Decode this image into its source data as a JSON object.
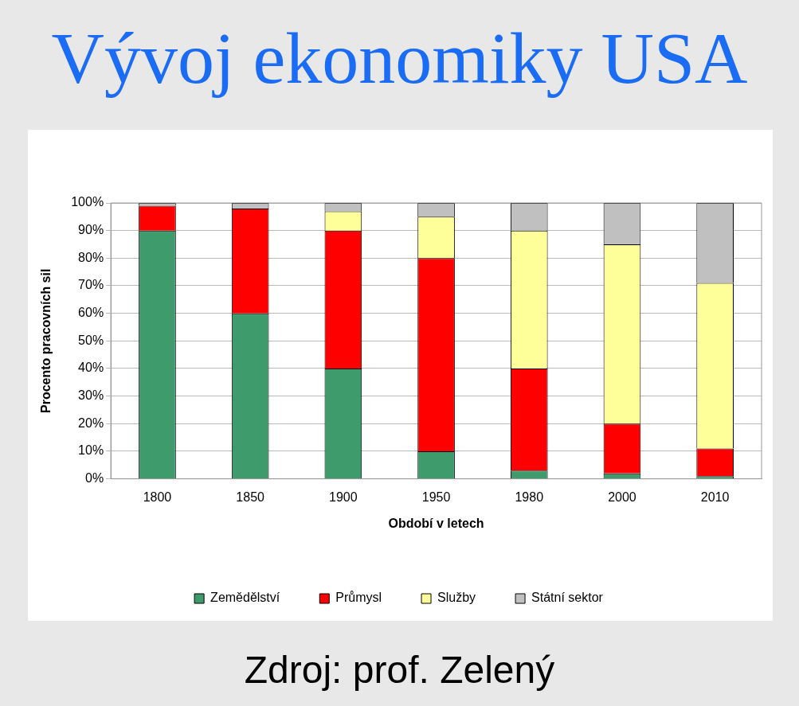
{
  "chart_data": {
    "type": "bar",
    "title": "Vývoj ekonomiky USA",
    "xlabel": "Období v letech",
    "ylabel": "Procento pracovních sil",
    "categories": [
      "1800",
      "1850",
      "1900",
      "1950",
      "1980",
      "2000",
      "2010"
    ],
    "stacked": true,
    "series": [
      {
        "name": "Zemědělství",
        "color": "#3d9b6c",
        "values": [
          90,
          60,
          40,
          10,
          3,
          2,
          1
        ]
      },
      {
        "name": "Průmysl",
        "color": "#ff0000",
        "values": [
          9,
          38,
          50,
          70,
          37,
          18,
          10
        ]
      },
      {
        "name": "Služby",
        "color": "#ffff99",
        "values": [
          0,
          0,
          7,
          15,
          50,
          65,
          60
        ]
      },
      {
        "name": "Státní sektor",
        "color": "#c0c0c0",
        "values": [
          1,
          2,
          3,
          5,
          10,
          15,
          29
        ]
      }
    ],
    "ylim": [
      0,
      100
    ],
    "yticks": [
      {
        "value": 0,
        "label": "0%"
      },
      {
        "value": 10,
        "label": "10%"
      },
      {
        "value": 20,
        "label": "20%"
      },
      {
        "value": 30,
        "label": "30%"
      },
      {
        "value": 40,
        "label": "40%"
      },
      {
        "value": 50,
        "label": "50%"
      },
      {
        "value": 60,
        "label": "60%"
      },
      {
        "value": 70,
        "label": "70%"
      },
      {
        "value": 80,
        "label": "80%"
      },
      {
        "value": 90,
        "label": "90%"
      },
      {
        "value": 100,
        "label": "100%"
      }
    ],
    "grid": "y",
    "legend": "bottom",
    "annotations": [
      "Zdroj: prof. Zelený"
    ]
  }
}
